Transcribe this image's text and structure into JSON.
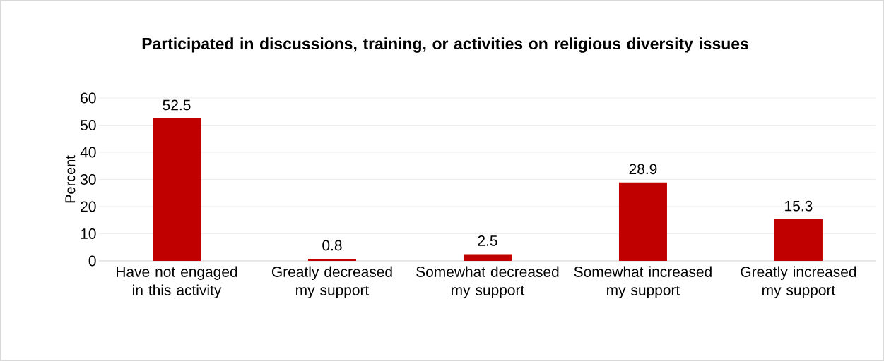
{
  "chart_data": {
    "type": "bar",
    "title": "Participated in discussions, training, or activities on religious diversity issues",
    "ylabel": "Percent",
    "categories": [
      "Have not engaged in this activity",
      "Greatly decreased my support",
      "Somewhat decreased my support",
      "Somewhat increased my support",
      "Greatly increased my support"
    ],
    "values": [
      52.5,
      0.8,
      2.5,
      28.9,
      15.3
    ],
    "color": "#c00000",
    "ylim": [
      0,
      60
    ],
    "yticks": [
      0,
      10,
      20,
      30,
      40,
      50,
      60
    ],
    "grid": "y",
    "data_labels": true
  }
}
